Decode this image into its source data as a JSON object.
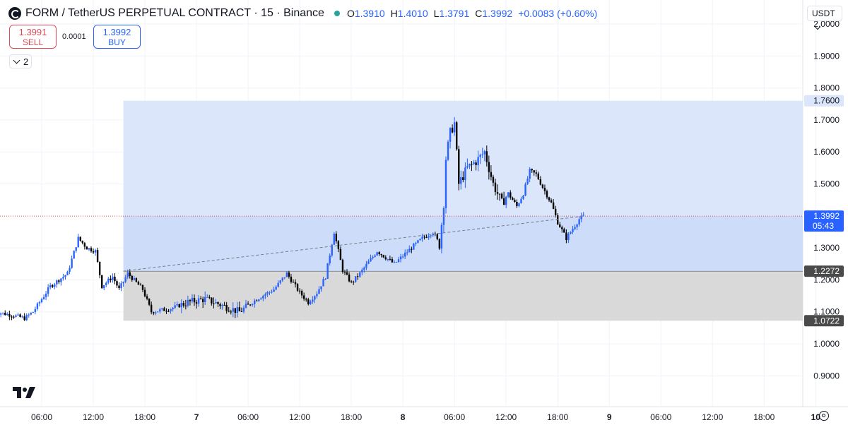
{
  "header": {
    "title": "FORM / TetherUS PERPETUAL CONTRACT · 15 · Binance",
    "o_label": "O",
    "o_value": "1.3910",
    "h_label": "H",
    "h_value": "1.4010",
    "l_label": "L",
    "l_value": "1.3791",
    "c_label": "C",
    "c_value": "1.3992",
    "change": "+0.0083 (+0.60%)"
  },
  "trade": {
    "sell_price": "1.3991",
    "sell_label": "SELL",
    "spread": "0.0001",
    "buy_price": "1.3992",
    "buy_label": "BUY"
  },
  "indicators_count": "2",
  "currency": "USDT",
  "colors": {
    "up": "#2962ff",
    "down": "#000000",
    "profit_zone": "#dbe6fb",
    "loss_zone": "#d9d9d9",
    "label_bg": "#dbe6fb",
    "label_dark": "#4a4a4a",
    "last_price_line": "#e04a57"
  },
  "icons": [
    "symbol-logo-icon",
    "market-status-icon",
    "chevron-down-icon",
    "tradingview-logo-icon",
    "settings-gear-icon"
  ],
  "chart_data": {
    "type": "candlestick",
    "y_ticks": [
      "2.0000",
      "1.9000",
      "1.8000",
      "1.7000",
      "1.6000",
      "1.5000",
      "1.3000",
      "1.2000",
      "1.1000",
      "1.0000",
      "0.9000"
    ],
    "x_ticks": [
      "06:00",
      "12:00",
      "18:00",
      "7",
      "06:00",
      "12:00",
      "18:00",
      "8",
      "06:00",
      "12:00",
      "18:00",
      "9",
      "06:00",
      "12:00",
      "18:00",
      "10"
    ],
    "position": {
      "type": "long",
      "entry": 1.2272,
      "target": 1.76,
      "stop": 1.0722,
      "target_label": "1.7600",
      "entry_label": "1.2272",
      "stop_label": "1.0722"
    },
    "last_price": {
      "value": 1.3992,
      "label": "1.3992",
      "countdown": "05:43"
    },
    "price_path": [
      [
        "6T00:30",
        1.1
      ],
      [
        "6T02:30",
        1.09
      ],
      [
        "6T04:00",
        1.08
      ],
      [
        "6T05:00",
        1.1
      ],
      [
        "6T07:00",
        1.18
      ],
      [
        "6T09:00",
        1.22
      ],
      [
        "6T10:15",
        1.33
      ],
      [
        "6T11:15",
        1.3
      ],
      [
        "6T12:15",
        1.29
      ],
      [
        "6T13:00",
        1.18
      ],
      [
        "6T14:15",
        1.21
      ],
      [
        "6T15:00",
        1.17
      ],
      [
        "6T16:00",
        1.22
      ],
      [
        "6T17:45",
        1.17
      ],
      [
        "6T18:45",
        1.1
      ],
      [
        "6T21:00",
        1.11
      ],
      [
        "6T23:00",
        1.13
      ],
      [
        "7T01:00",
        1.14
      ],
      [
        "7T03:00",
        1.12
      ],
      [
        "7T05:00",
        1.1
      ],
      [
        "7T07:00",
        1.14
      ],
      [
        "7T09:00",
        1.17
      ],
      [
        "7T10:30",
        1.22
      ],
      [
        "7T11:30",
        1.18
      ],
      [
        "7T12:00",
        1.16
      ],
      [
        "7T13:00",
        1.13
      ],
      [
        "7T14:00",
        1.16
      ],
      [
        "7T15:00",
        1.21
      ],
      [
        "7T16:00",
        1.35
      ],
      [
        "7T17:00",
        1.23
      ],
      [
        "7T18:00",
        1.19
      ],
      [
        "7T19:00",
        1.22
      ],
      [
        "7T21:00",
        1.29
      ],
      [
        "7T23:00",
        1.25
      ],
      [
        "8T01:00",
        1.3
      ],
      [
        "8T02:15",
        1.33
      ],
      [
        "8T03:30",
        1.35
      ],
      [
        "8T04:15",
        1.31
      ],
      [
        "8T04:45",
        1.44
      ],
      [
        "8T05:00",
        1.58
      ],
      [
        "8T05:30",
        1.66
      ],
      [
        "8T06:00",
        1.69
      ],
      [
        "8T06:30",
        1.5
      ],
      [
        "8T07:30",
        1.55
      ],
      [
        "8T08:30",
        1.57
      ],
      [
        "8T09:30",
        1.6
      ],
      [
        "8T10:30",
        1.5
      ],
      [
        "8T11:30",
        1.44
      ],
      [
        "8T12:15",
        1.47
      ],
      [
        "8T13:15",
        1.43
      ],
      [
        "8T14:00",
        1.47
      ],
      [
        "8T14:45",
        1.54
      ],
      [
        "8T15:30",
        1.53
      ],
      [
        "8T16:15",
        1.49
      ],
      [
        "8T17:15",
        1.44
      ],
      [
        "8T18:00",
        1.38
      ],
      [
        "8T19:00",
        1.33
      ],
      [
        "8T19:30",
        1.35
      ],
      [
        "8T20:30",
        1.39
      ],
      [
        "8T21:00",
        1.3992
      ]
    ]
  }
}
